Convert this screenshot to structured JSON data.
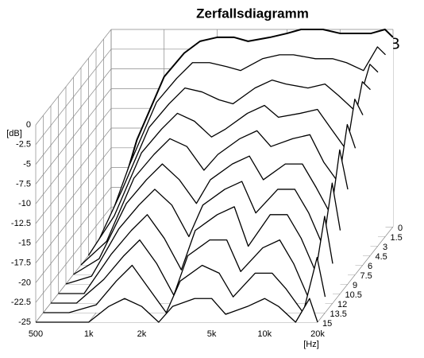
{
  "chart_data": {
    "type": "waterfall",
    "title": "Zerfallsdiagramm",
    "annotation": "ATB",
    "x_label": "[Hz]",
    "y_label": "[dB]",
    "x": [
      500,
      700,
      1000,
      1300,
      1600,
      2000,
      2500,
      3000,
      4000,
      5000,
      6000,
      8000,
      10000,
      12000,
      15000,
      18000,
      20000
    ],
    "xlim": [
      500,
      20000
    ],
    "log_x": true,
    "xticks": [
      500,
      {
        "value": 1000,
        "label": "1k"
      },
      {
        "value": 2000,
        "label": "2k"
      },
      {
        "value": 5000,
        "label": "5k"
      },
      {
        "value": 10000,
        "label": "10k"
      },
      {
        "value": 20000,
        "label": "20k"
      }
    ],
    "ylim": [
      -25,
      0
    ],
    "yticks": [
      0,
      -2.5,
      -5,
      -7.5,
      -10,
      -12.5,
      -15,
      -17.5,
      -20,
      -22.5,
      -25
    ],
    "zlim": [
      0,
      15
    ],
    "zticks": [
      0,
      1.5,
      3,
      4.5,
      6,
      7.5,
      9,
      10.5,
      12,
      13.5,
      15
    ],
    "color": "#000000",
    "grid": true,
    "series": [
      {
        "values": [
          -25,
          -14,
          -6,
          -3,
          -1.5,
          -1,
          -1,
          -1.5,
          -1,
          -0.5,
          0,
          0,
          -0.5,
          -0.5,
          -0.5,
          0,
          -1
        ]
      },
      {
        "values": [
          -25,
          -16,
          -8,
          -5,
          -3,
          -3,
          -3.5,
          -4,
          -2.5,
          -2,
          -2,
          -2.5,
          -2.5,
          -3,
          -4,
          -1,
          -2
        ]
      },
      {
        "values": [
          -25,
          -18,
          -10,
          -7,
          -5,
          -5.5,
          -6.5,
          -7,
          -5,
          -4,
          -4.5,
          -5,
          -4.5,
          -6,
          -8,
          -2,
          -3
        ]
      },
      {
        "values": [
          -25,
          -20,
          -12,
          -9,
          -7,
          -8,
          -10,
          -9,
          -7,
          -6,
          -7.5,
          -7,
          -6.5,
          -9,
          -12,
          -3,
          -4
        ]
      },
      {
        "values": [
          -25,
          -22,
          -14,
          -11,
          -9,
          -10,
          -13,
          -11,
          -9,
          -8,
          -10,
          -9,
          -8.5,
          -12,
          -15,
          -4,
          -6
        ]
      },
      {
        "values": [
          -25,
          -23,
          -16,
          -13,
          -11,
          -13,
          -16,
          -13,
          -11,
          -10,
          -13,
          -11,
          -11,
          -14,
          -18,
          -6,
          -9
        ]
      },
      {
        "values": [
          -25,
          -24,
          -18,
          -15,
          -13,
          -15,
          -19,
          -15,
          -13,
          -12,
          -16,
          -13,
          -13,
          -16,
          -21,
          -8,
          -13
        ]
      },
      {
        "values": [
          -25,
          -25,
          -20,
          -17,
          -15,
          -18,
          -22,
          -17,
          -15,
          -14,
          -19,
          -15,
          -15,
          -18,
          -23,
          -11,
          -17
        ]
      },
      {
        "values": [
          -25,
          -25,
          -22,
          -19,
          -17,
          -20,
          -24,
          -19,
          -17,
          -17,
          -21,
          -18,
          -17,
          -20,
          -25,
          -14,
          -20
        ]
      },
      {
        "values": [
          -25,
          -25,
          -24,
          -21,
          -19,
          -22,
          -25,
          -21,
          -19,
          -20,
          -23,
          -20,
          -20,
          -22,
          -25,
          -18,
          -23
        ]
      },
      {
        "values": [
          -25,
          -25,
          -25,
          -23,
          -22,
          -23,
          -25,
          -23,
          -22,
          -22,
          -24,
          -23,
          -22,
          -23,
          -25,
          -22,
          -25
        ]
      }
    ]
  }
}
